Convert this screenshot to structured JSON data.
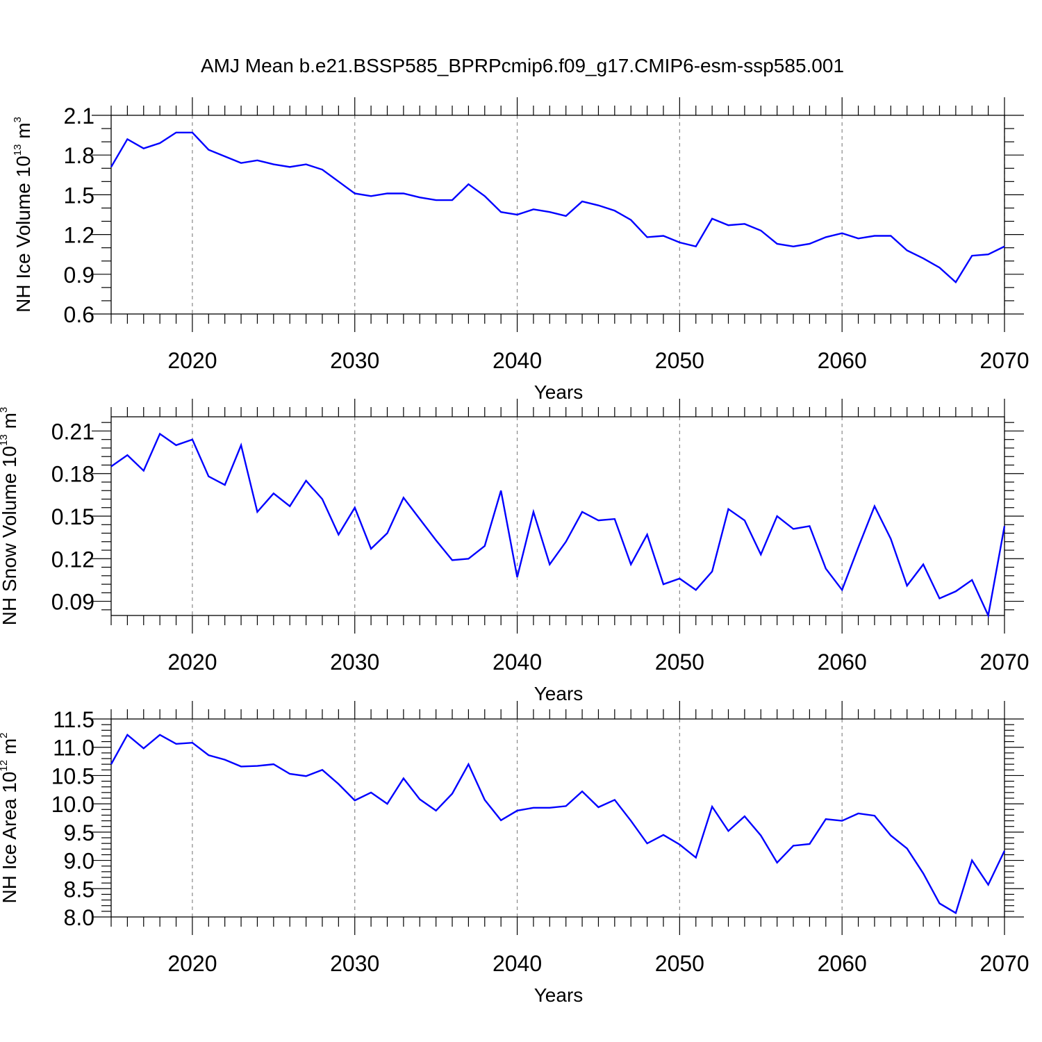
{
  "title": "AMJ Mean b.e21.BSSP585_BPRPcmip6.f09_g17.CMIP6-esm-ssp585.001",
  "chart_data": [
    {
      "type": "line",
      "ylabel": "NH Ice Volume 10",
      "ylabel_exp": "13",
      "ylabel_unit": " m",
      "ylabel_unit_exp": "3",
      "xlabel": "Years",
      "xlim": [
        2015,
        2070
      ],
      "ylim": [
        0.6,
        2.1
      ],
      "yticks": [
        0.6,
        0.9,
        1.2,
        1.5,
        1.8,
        2.1
      ],
      "ytick_labels": [
        "0.6",
        "0.9",
        "1.2",
        "1.5",
        "1.8",
        "2.1"
      ],
      "xticks": [
        2020,
        2030,
        2040,
        2050,
        2060,
        2070
      ],
      "xtick_labels": [
        "2020",
        "2030",
        "2040",
        "2050",
        "2060",
        "2070"
      ],
      "x": [
        2015,
        2016,
        2017,
        2018,
        2019,
        2020,
        2021,
        2022,
        2023,
        2024,
        2025,
        2026,
        2027,
        2028,
        2029,
        2030,
        2031,
        2032,
        2033,
        2034,
        2035,
        2036,
        2037,
        2038,
        2039,
        2040,
        2041,
        2042,
        2043,
        2044,
        2045,
        2046,
        2047,
        2048,
        2049,
        2050,
        2051,
        2052,
        2053,
        2054,
        2055,
        2056,
        2057,
        2058,
        2059,
        2060,
        2061,
        2062,
        2063,
        2064,
        2065,
        2066,
        2067,
        2068,
        2069,
        2070
      ],
      "values": [
        1.71,
        1.92,
        1.85,
        1.89,
        1.97,
        1.97,
        1.84,
        1.79,
        1.74,
        1.76,
        1.73,
        1.71,
        1.73,
        1.69,
        1.6,
        1.51,
        1.49,
        1.51,
        1.51,
        1.48,
        1.46,
        1.46,
        1.58,
        1.49,
        1.37,
        1.35,
        1.39,
        1.37,
        1.34,
        1.45,
        1.42,
        1.38,
        1.31,
        1.18,
        1.19,
        1.14,
        1.11,
        1.32,
        1.27,
        1.28,
        1.23,
        1.13,
        1.11,
        1.13,
        1.18,
        1.21,
        1.17,
        1.19,
        1.19,
        1.08,
        1.02,
        0.95,
        0.84,
        1.04,
        1.05,
        1.11
      ]
    },
    {
      "type": "line",
      "ylabel": "NH Snow Volume 10",
      "ylabel_exp": "13",
      "ylabel_unit": " m",
      "ylabel_unit_exp": "3",
      "xlabel": "Years",
      "xlim": [
        2015,
        2070
      ],
      "ylim": [
        0.08,
        0.22
      ],
      "yticks": [
        0.09,
        0.12,
        0.15,
        0.18,
        0.21
      ],
      "ytick_labels": [
        "0.09",
        "0.12",
        "0.15",
        "0.18",
        "0.21"
      ],
      "xticks": [
        2020,
        2030,
        2040,
        2050,
        2060,
        2070
      ],
      "xtick_labels": [
        "2020",
        "2030",
        "2040",
        "2050",
        "2060",
        "2070"
      ],
      "x": [
        2015,
        2016,
        2017,
        2018,
        2019,
        2020,
        2021,
        2022,
        2023,
        2024,
        2025,
        2026,
        2027,
        2028,
        2029,
        2030,
        2031,
        2032,
        2033,
        2034,
        2035,
        2036,
        2037,
        2038,
        2039,
        2040,
        2041,
        2042,
        2043,
        2044,
        2045,
        2046,
        2047,
        2048,
        2049,
        2050,
        2051,
        2052,
        2053,
        2054,
        2055,
        2056,
        2057,
        2058,
        2059,
        2060,
        2061,
        2062,
        2063,
        2064,
        2065,
        2066,
        2067,
        2068,
        2069,
        2070
      ],
      "values": [
        0.185,
        0.193,
        0.182,
        0.208,
        0.2,
        0.204,
        0.178,
        0.172,
        0.2,
        0.153,
        0.166,
        0.157,
        0.175,
        0.162,
        0.137,
        0.156,
        0.127,
        0.138,
        0.163,
        0.148,
        0.133,
        0.119,
        0.12,
        0.129,
        0.168,
        0.107,
        0.153,
        0.116,
        0.132,
        0.153,
        0.147,
        0.148,
        0.116,
        0.137,
        0.102,
        0.106,
        0.098,
        0.111,
        0.155,
        0.147,
        0.123,
        0.15,
        0.141,
        0.143,
        0.113,
        0.098,
        0.128,
        0.157,
        0.134,
        0.101,
        0.116,
        0.092,
        0.097,
        0.105,
        0.08,
        0.143
      ]
    },
    {
      "type": "line",
      "ylabel": "NH Ice Area 10",
      "ylabel_exp": "12",
      "ylabel_unit": " m",
      "ylabel_unit_exp": "2",
      "xlabel": "Years",
      "xlim": [
        2015,
        2070
      ],
      "ylim": [
        8.0,
        11.5
      ],
      "yticks": [
        8.0,
        8.5,
        9.0,
        9.5,
        10.0,
        10.5,
        11.0,
        11.5
      ],
      "ytick_labels": [
        "8.0",
        "8.5",
        "9.0",
        "9.5",
        "10.0",
        "10.5",
        "11.0",
        "11.5"
      ],
      "xticks": [
        2020,
        2030,
        2040,
        2050,
        2060,
        2070
      ],
      "xtick_labels": [
        "2020",
        "2030",
        "2040",
        "2050",
        "2060",
        "2070"
      ],
      "x": [
        2015,
        2016,
        2017,
        2018,
        2019,
        2020,
        2021,
        2022,
        2023,
        2024,
        2025,
        2026,
        2027,
        2028,
        2029,
        2030,
        2031,
        2032,
        2033,
        2034,
        2035,
        2036,
        2037,
        2038,
        2039,
        2040,
        2041,
        2042,
        2043,
        2044,
        2045,
        2046,
        2047,
        2048,
        2049,
        2050,
        2051,
        2052,
        2053,
        2054,
        2055,
        2056,
        2057,
        2058,
        2059,
        2060,
        2061,
        2062,
        2063,
        2064,
        2065,
        2066,
        2067,
        2068,
        2069,
        2070
      ],
      "values": [
        10.7,
        11.22,
        10.98,
        11.22,
        11.06,
        11.08,
        10.86,
        10.78,
        10.66,
        10.67,
        10.7,
        10.53,
        10.49,
        10.6,
        10.35,
        10.06,
        10.2,
        10.0,
        10.45,
        10.08,
        9.88,
        10.18,
        10.7,
        10.07,
        9.71,
        9.88,
        9.93,
        9.93,
        9.96,
        10.22,
        9.94,
        10.07,
        9.7,
        9.3,
        9.45,
        9.28,
        9.05,
        9.95,
        9.52,
        9.78,
        9.44,
        8.96,
        9.26,
        9.29,
        9.73,
        9.7,
        9.83,
        9.79,
        9.44,
        9.21,
        8.77,
        8.24,
        8.07,
        9.0,
        8.57,
        9.17
      ]
    }
  ]
}
